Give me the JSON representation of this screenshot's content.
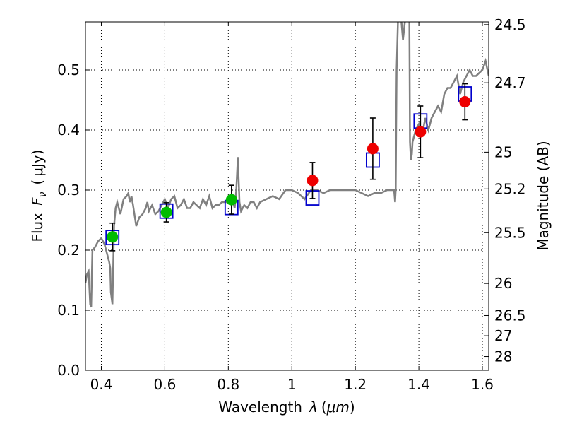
{
  "chart_data": {
    "type": "scatter",
    "title": "",
    "xlabel": "Wavelength",
    "xlabel_symbol": "λ",
    "xlabel_unit": "μm",
    "ylabel": "Flux",
    "ylabel_symbol": "F",
    "ylabel_subscript": "ν",
    "ylabel_unit": "μJy",
    "y2label": "Magnitude (AB)",
    "xlim": [
      0.35,
      1.62
    ],
    "ylim": [
      0.0,
      0.58
    ],
    "x_ticks": [
      0.4,
      0.6,
      0.8,
      1.0,
      1.2,
      1.4,
      1.6
    ],
    "x_tick_labels": [
      "0.4",
      "0.6",
      "0.8",
      "1",
      "1.2",
      "1.4",
      "1.6"
    ],
    "y_ticks": [
      0.0,
      0.1,
      0.2,
      0.3,
      0.4,
      0.5
    ],
    "y_tick_labels": [
      "0.0",
      "0.1",
      "0.2",
      "0.3",
      "0.4",
      "0.5"
    ],
    "y2_ticks": [
      24.5,
      24.7,
      25,
      25.2,
      25.5,
      26,
      26.5,
      27,
      28
    ],
    "y2_tick_labels": [
      "24.5",
      "24.7",
      "25",
      "25.2",
      "25.5",
      "26",
      "26.5",
      "27",
      "28"
    ],
    "grid": true,
    "colors": {
      "spectrum": "#808080",
      "model": "#0000cc",
      "optical": "#00bb00",
      "nir": "#ee0000",
      "errorbar": "#000000"
    },
    "spectrum": {
      "x": [
        0.35,
        0.355,
        0.36,
        0.365,
        0.368,
        0.372,
        0.38,
        0.39,
        0.4,
        0.41,
        0.42,
        0.425,
        0.428,
        0.43,
        0.435,
        0.44,
        0.445,
        0.45,
        0.46,
        0.47,
        0.48,
        0.485,
        0.49,
        0.495,
        0.5,
        0.51,
        0.52,
        0.53,
        0.54,
        0.545,
        0.55,
        0.56,
        0.57,
        0.58,
        0.59,
        0.6,
        0.61,
        0.62,
        0.63,
        0.64,
        0.65,
        0.66,
        0.67,
        0.68,
        0.69,
        0.7,
        0.71,
        0.72,
        0.73,
        0.74,
        0.75,
        0.76,
        0.77,
        0.78,
        0.79,
        0.8,
        0.81,
        0.815,
        0.82,
        0.825,
        0.83,
        0.835,
        0.84,
        0.85,
        0.86,
        0.87,
        0.88,
        0.89,
        0.9,
        0.92,
        0.94,
        0.96,
        0.98,
        1.0,
        1.02,
        1.04,
        1.06,
        1.08,
        1.1,
        1.12,
        1.14,
        1.16,
        1.18,
        1.2,
        1.22,
        1.24,
        1.26,
        1.28,
        1.3,
        1.31,
        1.32,
        1.322,
        1.325,
        1.327,
        1.33,
        1.335,
        1.34,
        1.345,
        1.35,
        1.36,
        1.37,
        1.372,
        1.375,
        1.378,
        1.38,
        1.39,
        1.4,
        1.41,
        1.42,
        1.43,
        1.44,
        1.45,
        1.46,
        1.47,
        1.48,
        1.49,
        1.5,
        1.51,
        1.52,
        1.53,
        1.54,
        1.55,
        1.56,
        1.57,
        1.58,
        1.59,
        1.6,
        1.61,
        1.62
      ],
      "y": [
        0.145,
        0.16,
        0.165,
        0.11,
        0.105,
        0.2,
        0.205,
        0.215,
        0.22,
        0.21,
        0.19,
        0.18,
        0.17,
        0.13,
        0.11,
        0.24,
        0.27,
        0.28,
        0.26,
        0.285,
        0.29,
        0.295,
        0.28,
        0.29,
        0.275,
        0.24,
        0.255,
        0.26,
        0.27,
        0.28,
        0.265,
        0.275,
        0.26,
        0.265,
        0.275,
        0.285,
        0.27,
        0.285,
        0.29,
        0.27,
        0.275,
        0.285,
        0.27,
        0.27,
        0.28,
        0.275,
        0.27,
        0.285,
        0.275,
        0.29,
        0.27,
        0.275,
        0.275,
        0.28,
        0.28,
        0.28,
        0.28,
        0.28,
        0.27,
        0.3,
        0.355,
        0.28,
        0.265,
        0.275,
        0.27,
        0.28,
        0.28,
        0.27,
        0.28,
        0.285,
        0.29,
        0.285,
        0.3,
        0.3,
        0.295,
        0.285,
        0.3,
        0.3,
        0.295,
        0.3,
        0.3,
        0.3,
        0.3,
        0.3,
        0.295,
        0.29,
        0.295,
        0.295,
        0.3,
        0.3,
        0.3,
        0.3,
        0.28,
        0.3,
        0.5,
        0.6,
        0.6,
        0.58,
        0.55,
        0.6,
        0.6,
        0.38,
        0.35,
        0.36,
        0.38,
        0.4,
        0.41,
        0.39,
        0.42,
        0.4,
        0.42,
        0.43,
        0.44,
        0.43,
        0.46,
        0.47,
        0.47,
        0.48,
        0.49,
        0.46,
        0.48,
        0.49,
        0.5,
        0.49,
        0.49,
        0.495,
        0.5,
        0.515,
        0.49
      ]
    },
    "series": [
      {
        "marker": "open-square",
        "x": [
          0.435,
          0.605,
          0.81,
          1.065,
          1.255,
          1.405,
          1.545
        ],
        "values": [
          0.221,
          0.265,
          0.271,
          0.287,
          0.35,
          0.415,
          0.46
        ]
      },
      {
        "marker": "filled-circle",
        "x": [
          0.435,
          0.605,
          0.81
        ],
        "values": [
          0.222,
          0.263,
          0.284
        ],
        "err": [
          0.023,
          0.016,
          0.024
        ]
      },
      {
        "marker": "filled-circle",
        "x": [
          1.065,
          1.255,
          1.405,
          1.545
        ],
        "values": [
          0.316,
          0.369,
          0.397,
          0.447
        ],
        "err": [
          0.03,
          0.051,
          0.043,
          0.03
        ]
      }
    ]
  }
}
